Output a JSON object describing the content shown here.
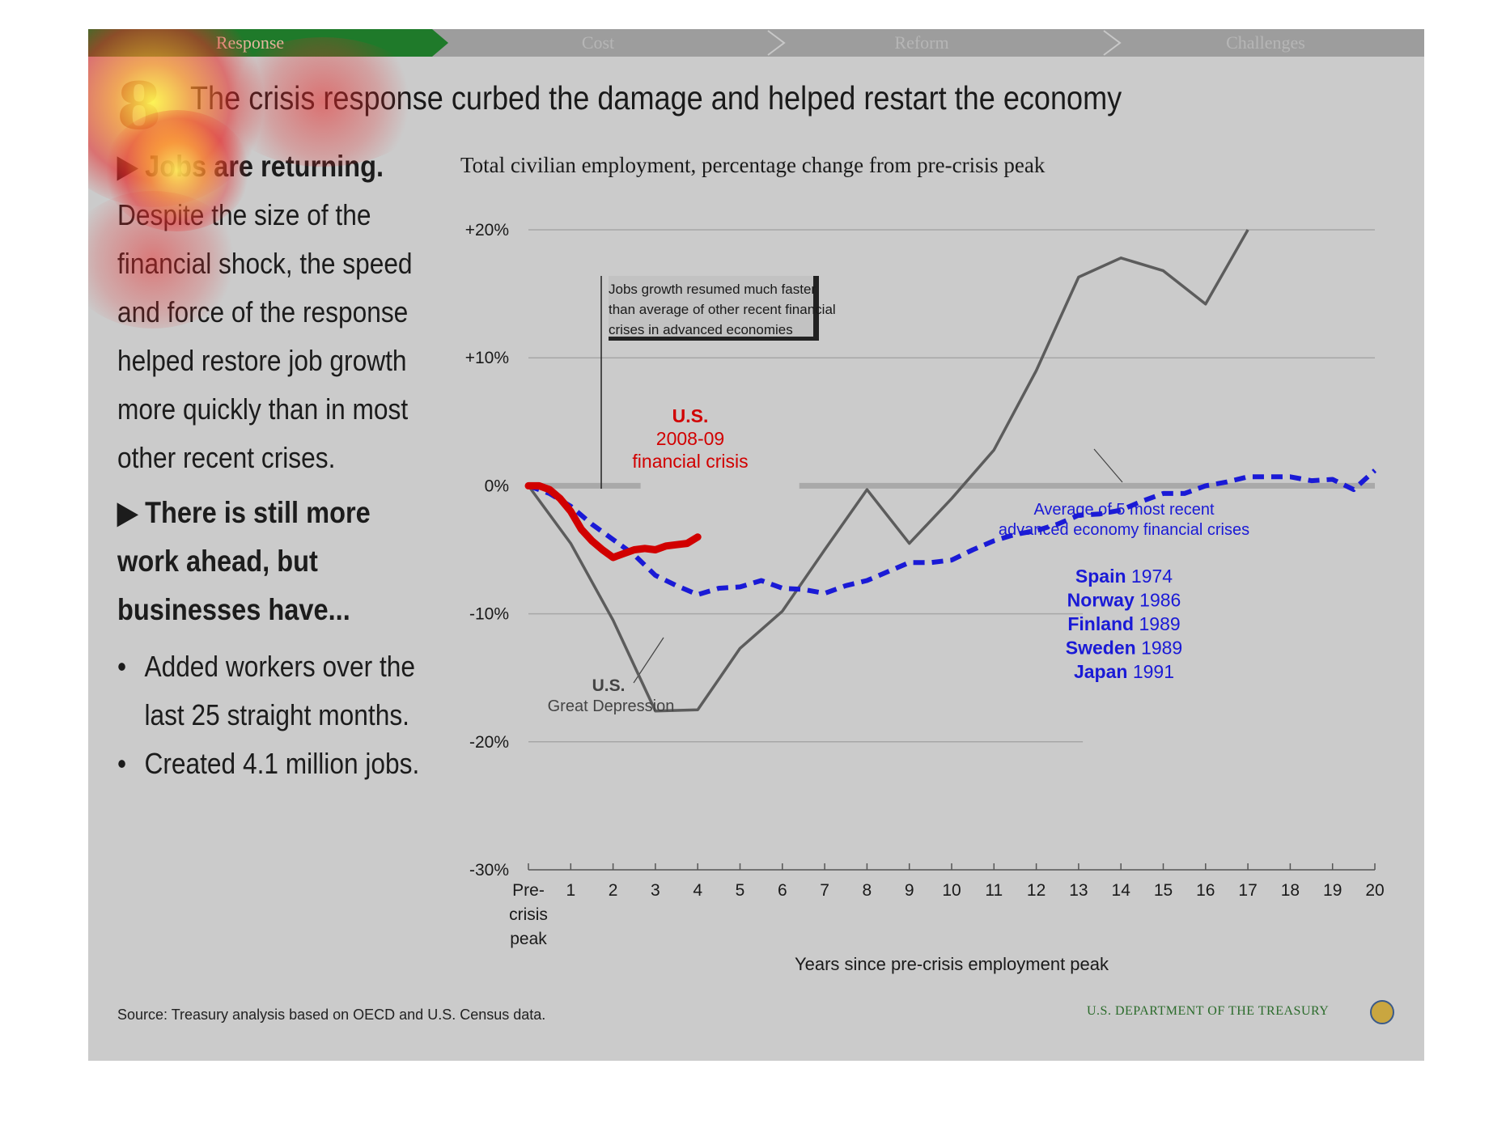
{
  "nav": {
    "items": [
      "Response",
      "Cost",
      "Reform",
      "Challenges"
    ],
    "active_index": 0
  },
  "heading": {
    "number": "8",
    "title": "The crisis response curbed the damage and helped restart the economy"
  },
  "left": {
    "head1": "▶ Jobs are returning.",
    "para1": "Despite the size of the financial shock, the speed and force of the response helped restore job growth more quickly than in most other recent crises.",
    "head2": "▶ There is still more work ahead, but businesses have...",
    "bullets": [
      "Added workers over the last 25 straight months.",
      "Created 4.1 million jobs."
    ]
  },
  "source": "Source: Treasury analysis based on OECD and U.S. Census data.",
  "footer": "U.S. DEPARTMENT OF THE TREASURY",
  "colors": {
    "us_2008": "#d10000",
    "depression": "#5c5c5c",
    "average": "#1a1ad6",
    "green": "#1f7a2a"
  },
  "chart_data": {
    "type": "line",
    "title": "Total civilian employment, percentage change from pre-crisis peak",
    "xlabel": "Years since pre-crisis employment peak",
    "ylabel": "",
    "xlim": [
      0,
      20
    ],
    "ylim": [
      -30,
      20
    ],
    "yticks": [
      20,
      10,
      0,
      -10,
      -20,
      -30
    ],
    "ytick_labels": [
      "+20%",
      "+10%",
      "0%",
      "-10%",
      "-20%",
      "-30%"
    ],
    "xtick_labels": [
      "Pre-crisis peak",
      "1",
      "2",
      "3",
      "4",
      "5",
      "6",
      "7",
      "8",
      "9",
      "10",
      "11",
      "12",
      "13",
      "14",
      "15",
      "16",
      "17",
      "18",
      "19",
      "20"
    ],
    "series": [
      {
        "name": "U.S. Great Depression",
        "x": [
          0,
          1,
          2,
          3,
          4,
          5,
          6,
          7,
          8,
          9,
          10,
          11,
          12,
          13,
          14,
          15,
          16,
          17
        ],
        "values": [
          0,
          -4.5,
          -10.5,
          -17.6,
          -17.5,
          -12.7,
          -9.8,
          -5,
          -0.3,
          -4.5,
          -1,
          2.8,
          9,
          16.3,
          17.8,
          16.8,
          14.2,
          20
        ]
      },
      {
        "name": "Average of 5 most recent advanced economy financial crises",
        "x": [
          0,
          0.5,
          1,
          1.5,
          2,
          2.5,
          3,
          3.5,
          4,
          4.5,
          5,
          5.5,
          6,
          6.5,
          7,
          7.5,
          8,
          8.5,
          9,
          9.5,
          10,
          10.5,
          11,
          11.5,
          12,
          12.5,
          13,
          13.5,
          14,
          14.5,
          15,
          15.5,
          16,
          16.5,
          17,
          17.5,
          18,
          18.5,
          19,
          19.5,
          20
        ],
        "values": [
          0,
          -0.6,
          -1.6,
          -3,
          -4.2,
          -5.4,
          -7,
          -7.8,
          -8.5,
          -8,
          -7.9,
          -7.4,
          -8,
          -8.1,
          -8.4,
          -7.8,
          -7.4,
          -6.7,
          -6,
          -6,
          -5.8,
          -5,
          -4.3,
          -3.8,
          -3.5,
          -3,
          -2.3,
          -2.2,
          -1.9,
          -1.2,
          -0.6,
          -0.6,
          0,
          0.3,
          0.7,
          0.7,
          0.7,
          0.4,
          0.5,
          -0.3,
          1.2
        ]
      },
      {
        "name": "U.S. 2008-09 financial crisis",
        "x": [
          0,
          0.25,
          0.5,
          0.75,
          1,
          1.25,
          1.5,
          1.75,
          2,
          2.25,
          2.5,
          2.75,
          3,
          3.25,
          3.5,
          3.75,
          4
        ],
        "values": [
          0,
          0,
          -0.3,
          -1,
          -2,
          -3.4,
          -4.3,
          -5,
          -5.6,
          -5.3,
          -5,
          -4.9,
          -5,
          -4.7,
          -4.6,
          -4.5,
          -4
        ]
      }
    ],
    "annotations": {
      "box": "Jobs growth resumed much faster than average of other recent financial crises in advanced economies",
      "us2008_title": "U.S.",
      "us2008_line1": "2008-09",
      "us2008_line2": "financial crisis",
      "dep_title": "U.S.",
      "dep_label": "Great Depression",
      "avg_line1": "Average of 5 most recent",
      "avg_line2": "advanced economy financial crises",
      "countries": [
        {
          "name": "Spain",
          "year": "1974"
        },
        {
          "name": "Norway",
          "year": "1986"
        },
        {
          "name": "Finland",
          "year": "1989"
        },
        {
          "name": "Sweden",
          "year": "1989"
        },
        {
          "name": "Japan",
          "year": "1991"
        }
      ]
    }
  }
}
